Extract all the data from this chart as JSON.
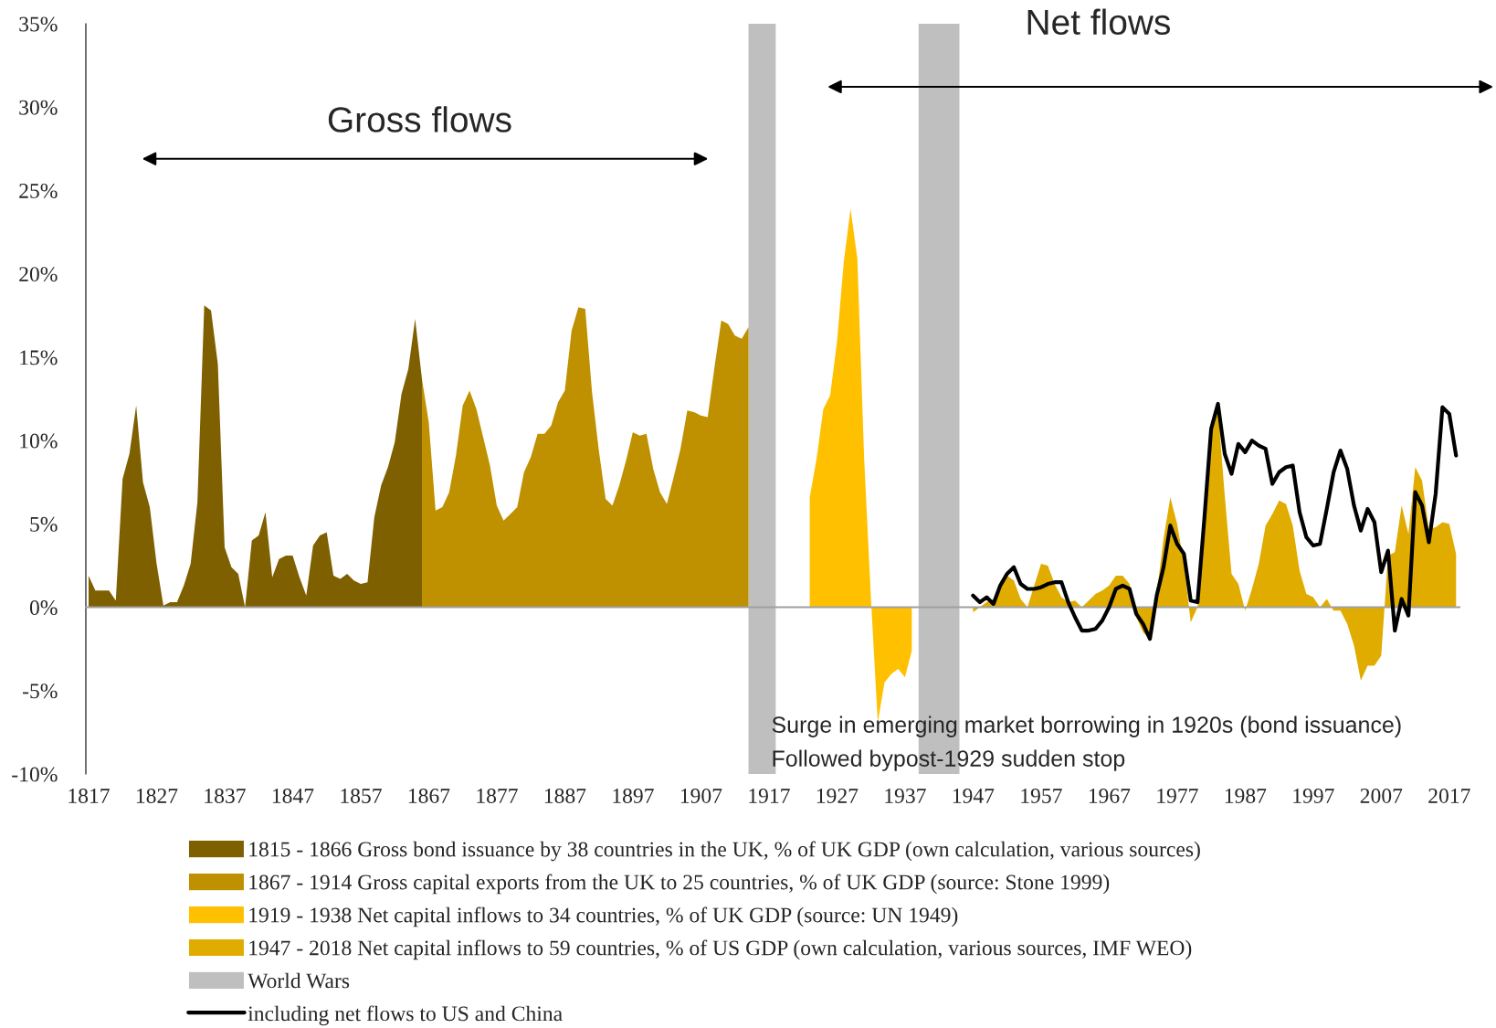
{
  "chart_data": {
    "type": "area",
    "series": [
      {
        "name": "1815 - 1866 Gross bond issuance by 38 countries in the UK, % of UK GDP (own calculation, various sources)",
        "color": "#7f6000",
        "x": [
          1817,
          1818,
          1819,
          1820,
          1821,
          1822,
          1823,
          1824,
          1825,
          1826,
          1827,
          1828,
          1829,
          1830,
          1831,
          1832,
          1833,
          1834,
          1835,
          1836,
          1837,
          1838,
          1839,
          1840,
          1841,
          1842,
          1843,
          1844,
          1845,
          1846,
          1847,
          1848,
          1849,
          1850,
          1851,
          1852,
          1853,
          1854,
          1855,
          1856,
          1857,
          1858,
          1859,
          1860,
          1861,
          1862,
          1863,
          1864,
          1865,
          1866
        ],
        "values": [
          1.9,
          1.0,
          1.0,
          1.0,
          0.4,
          7.7,
          9.2,
          12.1,
          7.5,
          6.0,
          2.6,
          0.1,
          0.3,
          0.3,
          1.3,
          2.6,
          6.3,
          18.1,
          17.8,
          14.6,
          3.6,
          2.4,
          2.0,
          0.0,
          4.0,
          4.3,
          5.7,
          1.8,
          2.9,
          3.1,
          3.1,
          1.8,
          0.7,
          3.7,
          4.3,
          4.5,
          1.9,
          1.7,
          2.0,
          1.6,
          1.4,
          1.5,
          5.4,
          7.3,
          8.4,
          9.9,
          12.8,
          14.3,
          17.3,
          13.7
        ]
      },
      {
        "name": "1867 - 1914 Gross capital exports from the UK to 25 countries, % of UK GDP (source: Stone 1999)",
        "color": "#bf9000",
        "x": [
          1866,
          1867,
          1868,
          1869,
          1870,
          1871,
          1872,
          1873,
          1874,
          1875,
          1876,
          1877,
          1878,
          1879,
          1880,
          1881,
          1882,
          1883,
          1884,
          1885,
          1886,
          1887,
          1888,
          1889,
          1890,
          1891,
          1892,
          1893,
          1894,
          1895,
          1896,
          1897,
          1898,
          1899,
          1900,
          1901,
          1902,
          1903,
          1904,
          1905,
          1906,
          1907,
          1908,
          1909,
          1910,
          1911,
          1912,
          1913,
          1914
        ],
        "values": [
          13.7,
          11.1,
          5.8,
          6.0,
          6.9,
          9.1,
          12.1,
          13.0,
          11.9,
          10.2,
          8.5,
          6.1,
          5.2,
          5.6,
          6.0,
          8.1,
          9.0,
          10.4,
          10.4,
          10.9,
          12.3,
          13.0,
          16.6,
          18.0,
          17.9,
          12.9,
          9.4,
          6.5,
          6.1,
          7.3,
          8.8,
          10.5,
          10.3,
          10.4,
          8.3,
          6.9,
          6.2,
          7.8,
          9.5,
          11.8,
          11.7,
          11.5,
          11.4,
          14.4,
          17.2,
          17.0,
          16.3,
          16.1,
          16.8
        ]
      },
      {
        "name": "1919 - 1938 Net capital inflows to 34 countries, % of UK GDP (source: UN 1949)",
        "color": "#ffc000",
        "x": [
          1923,
          1924,
          1925,
          1926,
          1927,
          1928,
          1929,
          1930,
          1931,
          1932,
          1933,
          1934,
          1935,
          1936,
          1937,
          1938
        ],
        "values": [
          6.6,
          8.9,
          11.9,
          12.7,
          15.9,
          20.7,
          23.9,
          20.9,
          8.9,
          0.5,
          -6.9,
          -4.5,
          -4.0,
          -3.7,
          -4.2,
          -2.6
        ]
      },
      {
        "name": "1947 - 2018 Net capital inflows to 59 countries, % of US GDP (own calculation, various sources, IMF WEO)",
        "color": "#e0ac00",
        "x": [
          1947,
          1948,
          1949,
          1950,
          1951,
          1952,
          1953,
          1954,
          1955,
          1956,
          1957,
          1958,
          1959,
          1960,
          1961,
          1962,
          1963,
          1964,
          1965,
          1966,
          1967,
          1968,
          1969,
          1970,
          1971,
          1972,
          1973,
          1974,
          1975,
          1976,
          1977,
          1978,
          1979,
          1980,
          1981,
          1982,
          1983,
          1984,
          1985,
          1986,
          1987,
          1988,
          1989,
          1990,
          1991,
          1992,
          1993,
          1994,
          1995,
          1996,
          1997,
          1998,
          1999,
          2000,
          2001,
          2002,
          2003,
          2004,
          2005,
          2006,
          2007,
          2008,
          2009,
          2010,
          2011,
          2012,
          2013,
          2014,
          2015,
          2016,
          2017,
          2018
        ],
        "values": [
          -0.3,
          0.0,
          0.3,
          0.5,
          1.4,
          1.9,
          1.6,
          0.5,
          0.0,
          1.3,
          2.6,
          2.5,
          1.4,
          0.6,
          0.3,
          0.4,
          0.0,
          0.4,
          0.8,
          1.0,
          1.3,
          1.9,
          1.9,
          1.4,
          -0.6,
          -1.5,
          -1.9,
          0.8,
          4.1,
          6.6,
          5.0,
          2.6,
          -0.9,
          0.0,
          4.5,
          10.6,
          11.9,
          6.7,
          2.0,
          1.4,
          -0.2,
          1.1,
          2.6,
          4.9,
          5.6,
          6.4,
          6.2,
          4.9,
          2.2,
          0.8,
          0.6,
          0.0,
          0.5,
          -0.2,
          -0.2,
          -1.0,
          -2.3,
          -4.4,
          -3.5,
          -3.5,
          -2.9,
          3.1,
          3.3,
          6.1,
          4.4,
          8.4,
          7.6,
          4.7,
          4.8,
          5.1,
          5.0,
          3.2
        ]
      },
      {
        "name": "including net flows to US and China",
        "type": "line",
        "color": "#000000",
        "x": [
          1947,
          1948,
          1949,
          1950,
          1951,
          1952,
          1953,
          1954,
          1955,
          1956,
          1957,
          1958,
          1959,
          1960,
          1961,
          1962,
          1963,
          1964,
          1965,
          1966,
          1967,
          1968,
          1969,
          1970,
          1971,
          1972,
          1973,
          1974,
          1975,
          1976,
          1977,
          1978,
          1979,
          1980,
          1981,
          1982,
          1983,
          1984,
          1985,
          1986,
          1987,
          1988,
          1989,
          1990,
          1991,
          1992,
          1993,
          1994,
          1995,
          1996,
          1997,
          1998,
          1999,
          2000,
          2001,
          2002,
          2003,
          2004,
          2005,
          2006,
          2007,
          2008,
          2009,
          2010,
          2011,
          2012,
          2013,
          2014,
          2015,
          2016,
          2017,
          2018
        ],
        "values": [
          0.7,
          0.3,
          0.6,
          0.2,
          1.3,
          2.0,
          2.4,
          1.4,
          1.1,
          1.1,
          1.2,
          1.4,
          1.5,
          1.5,
          0.3,
          -0.6,
          -1.4,
          -1.4,
          -1.3,
          -0.8,
          0.0,
          1.1,
          1.3,
          1.1,
          -0.4,
          -1.0,
          -1.9,
          0.7,
          2.4,
          4.9,
          3.8,
          3.2,
          0.4,
          0.3,
          5.3,
          10.7,
          12.2,
          9.2,
          8.0,
          9.8,
          9.3,
          10.0,
          9.7,
          9.5,
          7.4,
          8.1,
          8.4,
          8.5,
          5.7,
          4.2,
          3.7,
          3.8,
          5.9,
          8.1,
          9.4,
          8.3,
          6.1,
          4.6,
          5.9,
          5.1,
          2.1,
          3.4,
          -1.4,
          0.5,
          -0.5,
          6.9,
          6.1,
          3.9,
          6.8,
          12.0,
          11.6,
          9.1
        ]
      }
    ],
    "bands": [
      {
        "axis": "x",
        "from": 1914,
        "to": 1918,
        "label": "World Wars",
        "color": "#bfbfbf"
      },
      {
        "axis": "x",
        "from": 1939,
        "to": 1945,
        "color": "#bfbfbf"
      }
    ],
    "annotations": [
      "Gross flows",
      "Net flows",
      "Surge in emerging market borrowing in 1920s (bond issuance)",
      "Followed bypost-1929 sudden stop"
    ],
    "xlim": [
      1816.6,
      2018.5
    ],
    "xticks": [
      1817,
      1827,
      1837,
      1847,
      1857,
      1867,
      1877,
      1887,
      1897,
      1907,
      1917,
      1927,
      1937,
      1947,
      1957,
      1967,
      1977,
      1987,
      1997,
      2007,
      2017
    ],
    "ylim": [
      -10,
      35
    ],
    "yticks": [
      {
        "value": -10,
        "label": "-10%"
      },
      {
        "value": -5,
        "label": "-5%"
      },
      {
        "value": 0,
        "label": "0%"
      },
      {
        "value": 5,
        "label": "5%"
      },
      {
        "value": 10,
        "label": "10%"
      },
      {
        "value": 15,
        "label": "15%"
      },
      {
        "value": 20,
        "label": "20%"
      },
      {
        "value": 25,
        "label": "25%"
      },
      {
        "value": 30,
        "label": "30%"
      },
      {
        "value": 35,
        "label": "35%"
      }
    ],
    "legend": "bottom",
    "marker": "none",
    "line_style": "solid"
  }
}
